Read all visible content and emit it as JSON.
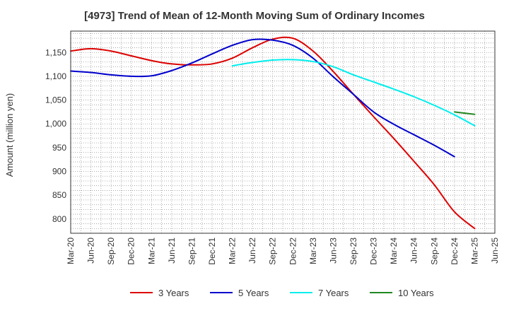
{
  "chart_data": {
    "type": "line",
    "title": "[4973]  Trend of Mean of 12-Month Moving Sum of Ordinary Incomes",
    "xlabel": "",
    "ylabel": "Amount (million yen)",
    "ylim": [
      770,
      1195
    ],
    "yticks": [
      800,
      850,
      900,
      950,
      1000,
      1050,
      1100,
      1150
    ],
    "ytick_labels": [
      "800",
      "850",
      "900",
      "950",
      "1,000",
      "1,050",
      "1,100",
      "1,150"
    ],
    "x_tick_labels": [
      "Mar-20",
      "Jun-20",
      "Sep-20",
      "Dec-20",
      "Mar-21",
      "Jun-21",
      "Sep-21",
      "Dec-21",
      "Mar-22",
      "Jun-22",
      "Sep-22",
      "Dec-22",
      "Mar-23",
      "Jun-23",
      "Sep-23",
      "Dec-23",
      "Mar-24",
      "Jun-24",
      "Sep-24",
      "Dec-24",
      "Mar-25",
      "Jun-25"
    ],
    "grid": true,
    "legend_position": "bottom",
    "series": [
      {
        "name": "3 Years",
        "color": "#dd0000",
        "start_index": 0,
        "values": [
          1153,
          1158,
          1153,
          1143,
          1133,
          1126,
          1124,
          1126,
          1138,
          1160,
          1178,
          1180,
          1153,
          1110,
          1062,
          1015,
          969,
          921,
          872,
          815,
          780
        ]
      },
      {
        "name": "5 Years",
        "color": "#0000cc",
        "start_index": 0,
        "values": [
          1111,
          1108,
          1103,
          1100,
          1101,
          1112,
          1128,
          1147,
          1165,
          1177,
          1176,
          1165,
          1138,
          1099,
          1062,
          1025,
          999,
          977,
          955,
          931
        ]
      },
      {
        "name": "7 Years",
        "color": "#00eeee",
        "start_index": 8,
        "values": [
          1122,
          1129,
          1134,
          1135,
          1131,
          1120,
          1103,
          1088,
          1073,
          1057,
          1039,
          1019,
          996
        ]
      },
      {
        "name": "10 Years",
        "color": "#228822",
        "start_index": 19,
        "values": [
          1025,
          1020
        ]
      }
    ]
  }
}
